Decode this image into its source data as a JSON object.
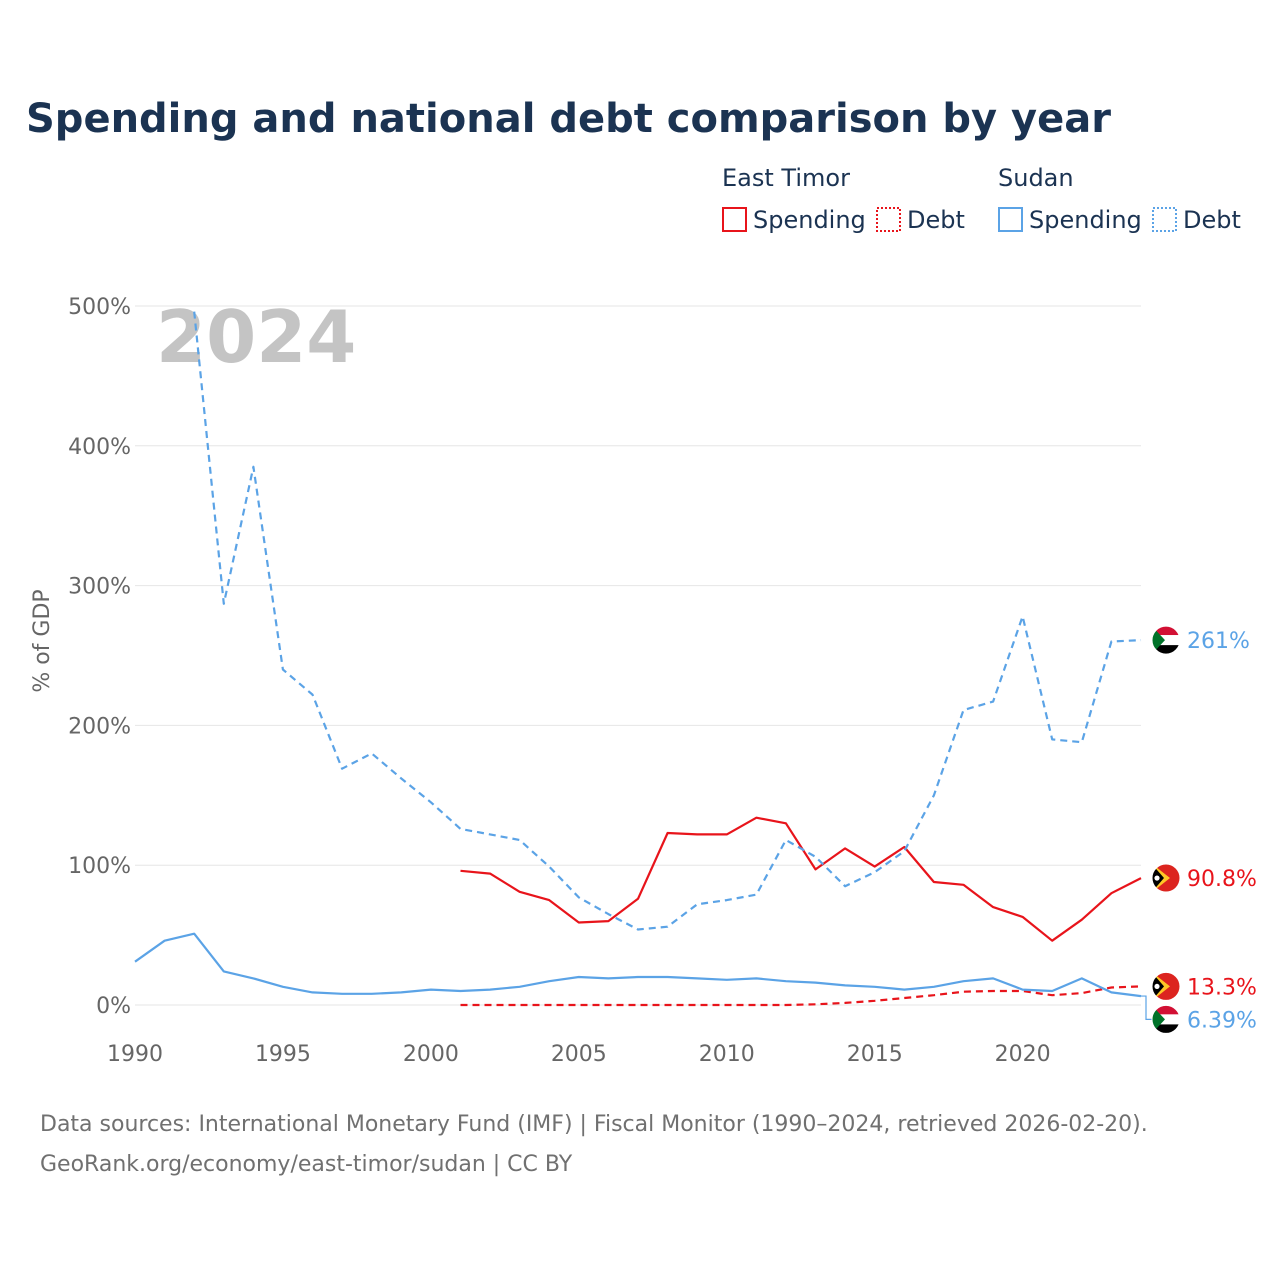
{
  "title": "Spending and national debt comparison by year",
  "year_label": "2024",
  "legend": {
    "groups": [
      {
        "country": "East Timor",
        "color": "#e8141b",
        "items": [
          "Spending",
          "Debt"
        ]
      },
      {
        "country": "Sudan",
        "color": "#5ba3e6",
        "items": [
          "Spending",
          "Debt"
        ]
      }
    ]
  },
  "chart_data": {
    "type": "line",
    "title": "Spending and national debt comparison by year",
    "xlabel": "",
    "ylabel": "% of GDP",
    "xlim": [
      1990,
      2024
    ],
    "ylim": [
      0,
      500
    ],
    "x_ticks": [
      1990,
      1995,
      2000,
      2005,
      2010,
      2015,
      2020
    ],
    "x_tick_labels": [
      "1990",
      "1995",
      "2000",
      "2005",
      "2010",
      "2015",
      "2020"
    ],
    "y_ticks": [
      0,
      100,
      200,
      300,
      400,
      500
    ],
    "y_tick_labels": [
      "0%",
      "100%",
      "200%",
      "300%",
      "400%",
      "500%"
    ],
    "grid": true,
    "series": [
      {
        "name": "East Timor Spending",
        "country": "East Timor",
        "metric": "Spending",
        "color": "#e8141b",
        "dash": "solid",
        "end_label": "90.8%",
        "x": [
          2001,
          2002,
          2003,
          2004,
          2005,
          2006,
          2007,
          2008,
          2009,
          2010,
          2011,
          2012,
          2013,
          2014,
          2015,
          2016,
          2017,
          2018,
          2019,
          2020,
          2021,
          2022,
          2023,
          2024
        ],
        "values": [
          96,
          94,
          81,
          75,
          59,
          60,
          76,
          123,
          122,
          122,
          134,
          130,
          97,
          112,
          99,
          113,
          88,
          86,
          70,
          63,
          46,
          61,
          80,
          90.8
        ]
      },
      {
        "name": "East Timor Debt",
        "country": "East Timor",
        "metric": "Debt",
        "color": "#e8141b",
        "dash": "dashed",
        "end_label": "13.3%",
        "x": [
          2001,
          2002,
          2003,
          2004,
          2005,
          2006,
          2007,
          2008,
          2009,
          2010,
          2011,
          2012,
          2013,
          2014,
          2015,
          2016,
          2017,
          2018,
          2019,
          2020,
          2021,
          2022,
          2023,
          2024
        ],
        "values": [
          0,
          0,
          0,
          0,
          0,
          0,
          0,
          0,
          0,
          0,
          0,
          0,
          0.5,
          1.5,
          3,
          5,
          7,
          9.5,
          10,
          10,
          7,
          8.5,
          12.5,
          13.3
        ]
      },
      {
        "name": "Sudan Spending",
        "country": "Sudan",
        "metric": "Spending",
        "color": "#5ba3e6",
        "dash": "solid",
        "end_label": "6.39%",
        "x": [
          1990,
          1991,
          1992,
          1993,
          1994,
          1995,
          1996,
          1997,
          1998,
          1999,
          2000,
          2001,
          2002,
          2003,
          2004,
          2005,
          2006,
          2007,
          2008,
          2009,
          2010,
          2011,
          2012,
          2013,
          2014,
          2015,
          2016,
          2017,
          2018,
          2019,
          2020,
          2021,
          2022,
          2023,
          2024
        ],
        "values": [
          31,
          46,
          51,
          24,
          19,
          13,
          9,
          8,
          8,
          9,
          11,
          10,
          11,
          13,
          17,
          20,
          19,
          20,
          20,
          19,
          18,
          19,
          17,
          16,
          14,
          13,
          11,
          13,
          17,
          19,
          11,
          10,
          19,
          9,
          6.39
        ]
      },
      {
        "name": "Sudan Debt",
        "country": "Sudan",
        "metric": "Debt",
        "color": "#5ba3e6",
        "dash": "dashed",
        "end_label": "261%",
        "x": [
          1992,
          1993,
          1994,
          1995,
          1996,
          1997,
          1998,
          1999,
          2000,
          2001,
          2002,
          2003,
          2004,
          2005,
          2006,
          2007,
          2008,
          2009,
          2010,
          2011,
          2012,
          2013,
          2014,
          2015,
          2016,
          2017,
          2018,
          2019,
          2020,
          2021,
          2022,
          2023,
          2024
        ],
        "values": [
          496,
          287,
          385,
          240,
          222,
          169,
          180,
          162,
          145,
          126,
          122,
          118,
          99,
          77,
          65,
          54,
          56,
          72,
          75,
          79,
          118,
          106,
          85,
          95,
          110,
          150,
          211,
          217,
          278,
          190,
          188,
          260,
          261
        ]
      }
    ]
  },
  "footer": {
    "line1": "Data sources: International Monetary Fund (IMF) | Fiscal Monitor (1990–2024, retrieved 2026-02-20).",
    "line2": "GeoRank.org/economy/east-timor/sudan | CC BY"
  }
}
